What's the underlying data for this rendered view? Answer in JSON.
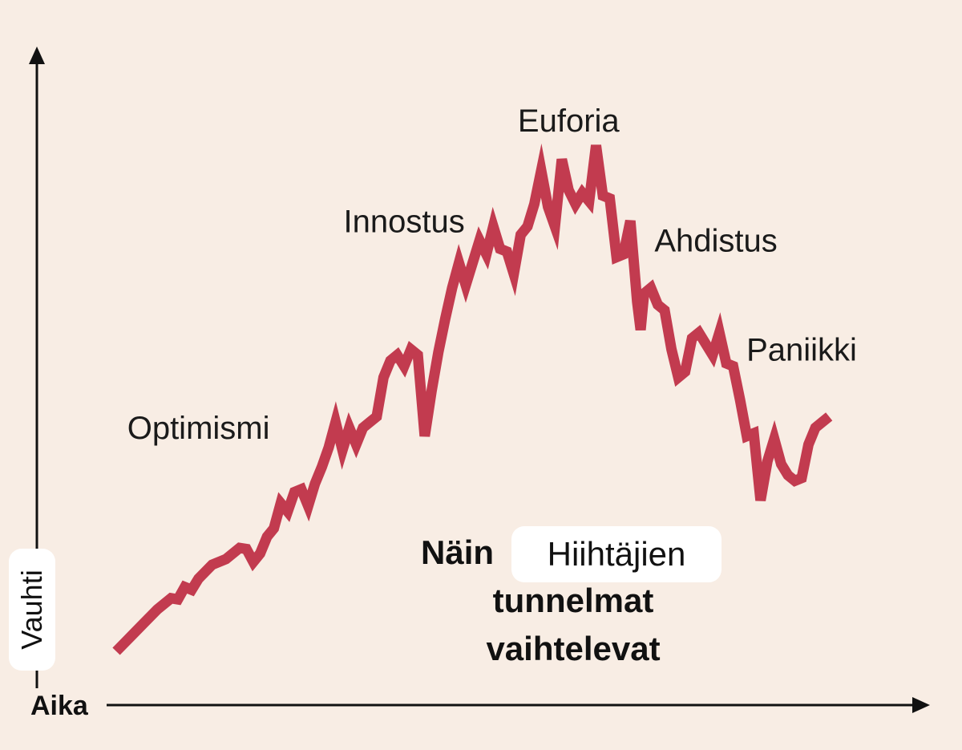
{
  "chart_data": {
    "type": "line",
    "xlabel": "Aika",
    "ylabel": "Vauhti",
    "title": {
      "line1_start": "Näin",
      "line1_overlay": "Hiihtäjien",
      "line2": "tunnelmat",
      "line3": "vaihtelevat"
    },
    "xlim": [
      0,
      100
    ],
    "ylim": [
      0,
      100
    ],
    "grid": false,
    "legend": "none",
    "series": [
      {
        "color": "#c23b4f",
        "points": [
          [
            0,
            0
          ],
          [
            2,
            2.5
          ],
          [
            4,
            5
          ],
          [
            6,
            7.5
          ],
          [
            8,
            9.5
          ],
          [
            9,
            9.3
          ],
          [
            10,
            11.5
          ],
          [
            11,
            11
          ],
          [
            12,
            13
          ],
          [
            14,
            15.5
          ],
          [
            16,
            16.5
          ],
          [
            18,
            18.5
          ],
          [
            19,
            18.3
          ],
          [
            20,
            16
          ],
          [
            21,
            17.5
          ],
          [
            22,
            20.5
          ],
          [
            23,
            22
          ],
          [
            24,
            26.5
          ],
          [
            25,
            25
          ],
          [
            26,
            28.5
          ],
          [
            27,
            29
          ],
          [
            28,
            26
          ],
          [
            29,
            30
          ],
          [
            30,
            33
          ],
          [
            31,
            36.5
          ],
          [
            32,
            41
          ],
          [
            33,
            36
          ],
          [
            34,
            40
          ],
          [
            35,
            37
          ],
          [
            36,
            40
          ],
          [
            37,
            41
          ],
          [
            38,
            42
          ],
          [
            39,
            49
          ],
          [
            40,
            52
          ],
          [
            41,
            53
          ],
          [
            42,
            51
          ],
          [
            43,
            54
          ],
          [
            44,
            53
          ],
          [
            45,
            38.5
          ],
          [
            46,
            46.5
          ],
          [
            47,
            53.5
          ],
          [
            48,
            59.5
          ],
          [
            49,
            65
          ],
          [
            50,
            69.5
          ],
          [
            51,
            65.5
          ],
          [
            52,
            69.5
          ],
          [
            53,
            73.5
          ],
          [
            54,
            71
          ],
          [
            55,
            76
          ],
          [
            56,
            72
          ],
          [
            57,
            71.5
          ],
          [
            58,
            67.5
          ],
          [
            59,
            74.5
          ],
          [
            60,
            76
          ],
          [
            61,
            80
          ],
          [
            62,
            86
          ],
          [
            63,
            79.5
          ],
          [
            64,
            76
          ],
          [
            65,
            88
          ],
          [
            66,
            82.5
          ],
          [
            67,
            80
          ],
          [
            68,
            82
          ],
          [
            69,
            80.5
          ],
          [
            70,
            90.5
          ],
          [
            71,
            81.5
          ],
          [
            72,
            81
          ],
          [
            73,
            70.5
          ],
          [
            74,
            71
          ],
          [
            75,
            77
          ],
          [
            76,
            62.5
          ],
          [
            76.5,
            57.5
          ],
          [
            77,
            64
          ],
          [
            78,
            65
          ],
          [
            79,
            62
          ],
          [
            80,
            61
          ],
          [
            81,
            54
          ],
          [
            82,
            49
          ],
          [
            83,
            50
          ],
          [
            84,
            56
          ],
          [
            85,
            57
          ],
          [
            86,
            55
          ],
          [
            87,
            53
          ],
          [
            88,
            57
          ],
          [
            89,
            51.5
          ],
          [
            90,
            51
          ],
          [
            91,
            45
          ],
          [
            92,
            38.5
          ],
          [
            93,
            39
          ],
          [
            94,
            27
          ],
          [
            95,
            34
          ],
          [
            96,
            38
          ],
          [
            97,
            33.5
          ],
          [
            98,
            31.5
          ],
          [
            99,
            30.5
          ],
          [
            100,
            31
          ],
          [
            101,
            37
          ],
          [
            102,
            40
          ],
          [
            103,
            41
          ],
          [
            104,
            42
          ]
        ]
      }
    ],
    "annotations": [
      {
        "text": "Optimismi",
        "x": 12,
        "y": 40
      },
      {
        "text": "Innostus",
        "x": 42,
        "y": 77
      },
      {
        "text": "Euforia",
        "x": 66,
        "y": 95
      },
      {
        "text": "Ahdistus",
        "x": 87.5,
        "y": 73.5
      },
      {
        "text": "Paniikki",
        "x": 100,
        "y": 54
      }
    ]
  }
}
